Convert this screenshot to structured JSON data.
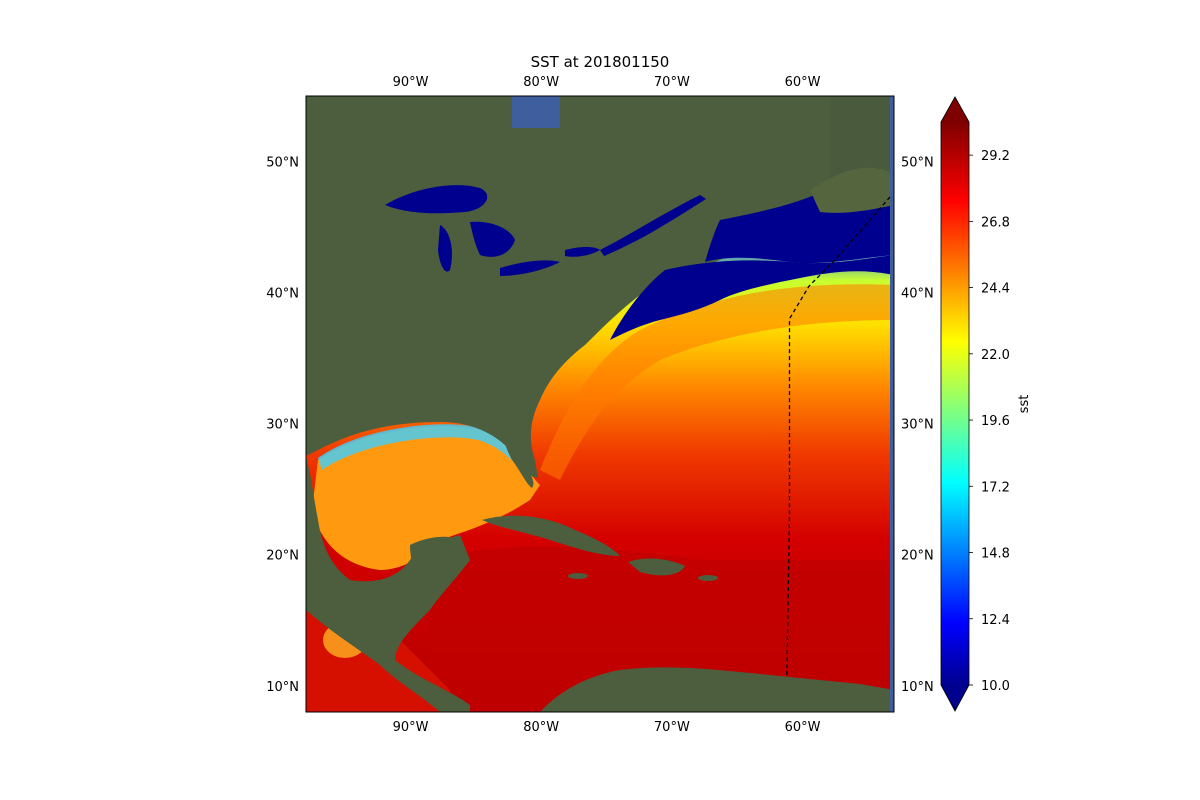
{
  "title": "SST at 201801150",
  "map": {
    "lon_range": [
      -98,
      -53
    ],
    "lat_range": [
      8,
      55
    ],
    "lon_ticks": [
      {
        "value": -90,
        "label": "90°W"
      },
      {
        "value": -80,
        "label": "80°W"
      },
      {
        "value": -70,
        "label": "70°W"
      },
      {
        "value": -60,
        "label": "60°W"
      }
    ],
    "lat_ticks": [
      {
        "value": 50,
        "label": "50°N"
      },
      {
        "value": 40,
        "label": "40°N"
      },
      {
        "value": 30,
        "label": "30°N"
      },
      {
        "value": 20,
        "label": "20°N"
      },
      {
        "value": 10,
        "label": "10°N"
      }
    ],
    "boundary_line": {
      "style": "dashed",
      "color": "#000000",
      "points": [
        [
          -53.3,
          47.3
        ],
        [
          -57.5,
          42.5
        ],
        [
          -59.5,
          40.5
        ],
        [
          -61,
          38.0
        ],
        [
          -61,
          23.0
        ],
        [
          -61.2,
          10.8
        ]
      ]
    }
  },
  "colorbar": {
    "label": "sst",
    "colormap": "jet",
    "range": [
      10.0,
      30.4
    ],
    "extend": "both",
    "ticks": [
      {
        "value": 10.0,
        "label": "10.0"
      },
      {
        "value": 12.4,
        "label": "12.4"
      },
      {
        "value": 14.8,
        "label": "14.8"
      },
      {
        "value": 17.2,
        "label": "17.2"
      },
      {
        "value": 19.6,
        "label": "19.6"
      },
      {
        "value": 22.0,
        "label": "22.0"
      },
      {
        "value": 24.4,
        "label": "24.4"
      },
      {
        "value": 26.8,
        "label": "26.8"
      },
      {
        "value": 29.2,
        "label": "29.2"
      }
    ]
  },
  "colors": {
    "land": "#4d5e3e",
    "cold_water": "#00008f",
    "sea_blue": "#3f5e9e"
  }
}
